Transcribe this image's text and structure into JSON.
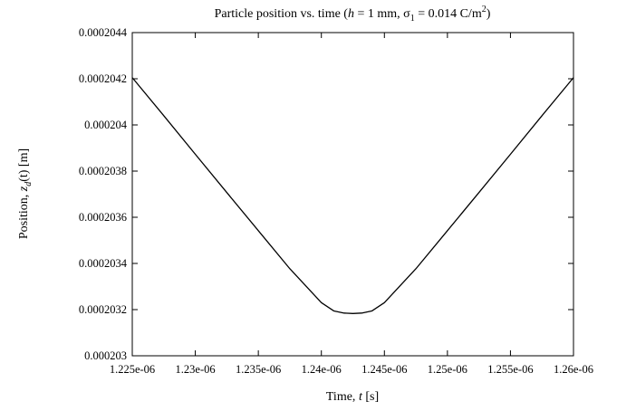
{
  "chart_data": {
    "type": "line",
    "title": {
      "prefix": "Particle position vs. time  (",
      "var_h": "h",
      "mid": " = 1 mm,  ",
      "sigma": "σ",
      "sigma_sub": "1",
      "tail": " = 0.014 C/m",
      "sup": "2",
      "close": ")"
    },
    "xlabel": {
      "text": "Time,  ",
      "var": "t",
      "unit": "  [s]"
    },
    "ylabel": {
      "text": "Position,  ",
      "var": "z",
      "sub": "d",
      "tail": "(t) [m]"
    },
    "xlim": [
      1.225e-06,
      1.26e-06
    ],
    "ylim": [
      0.000203,
      0.0002044
    ],
    "xticks": [
      1.225e-06,
      1.23e-06,
      1.235e-06,
      1.24e-06,
      1.245e-06,
      1.25e-06,
      1.255e-06,
      1.26e-06
    ],
    "xtick_labels": [
      "1.225e-06",
      "1.23e-06",
      "1.235e-06",
      "1.24e-06",
      "1.245e-06",
      "1.25e-06",
      "1.255e-06",
      "1.26e-06"
    ],
    "yticks": [
      0.000203,
      0.0002032,
      0.0002034,
      0.0002036,
      0.0002038,
      0.000204,
      0.0002042,
      0.0002044
    ],
    "ytick_labels": [
      "0.000203",
      "0.0002032",
      "0.0002034",
      "0.0002036",
      "0.0002038",
      "0.000204",
      "0.0002042",
      "0.0002044"
    ],
    "grid": false,
    "series": [
      {
        "color": "#000000",
        "x": [
          1.225e-06,
          1.2275e-06,
          1.23e-06,
          1.2325e-06,
          1.235e-06,
          1.2375e-06,
          1.24e-06,
          1.241e-06,
          1.2418e-06,
          1.2425e-06,
          1.2432e-06,
          1.244e-06,
          1.245e-06,
          1.2475e-06,
          1.25e-06,
          1.2525e-06,
          1.255e-06,
          1.2575e-06,
          1.26e-06
        ],
        "y": [
          0.000204205,
          0.00020404,
          0.000203873,
          0.000203707,
          0.000203542,
          0.000203377,
          0.00020323,
          0.000203194,
          0.000203185,
          0.000203183,
          0.000203185,
          0.000203194,
          0.00020323,
          0.000203377,
          0.000203542,
          0.000203707,
          0.000203873,
          0.00020404,
          0.000204205
        ]
      }
    ]
  }
}
